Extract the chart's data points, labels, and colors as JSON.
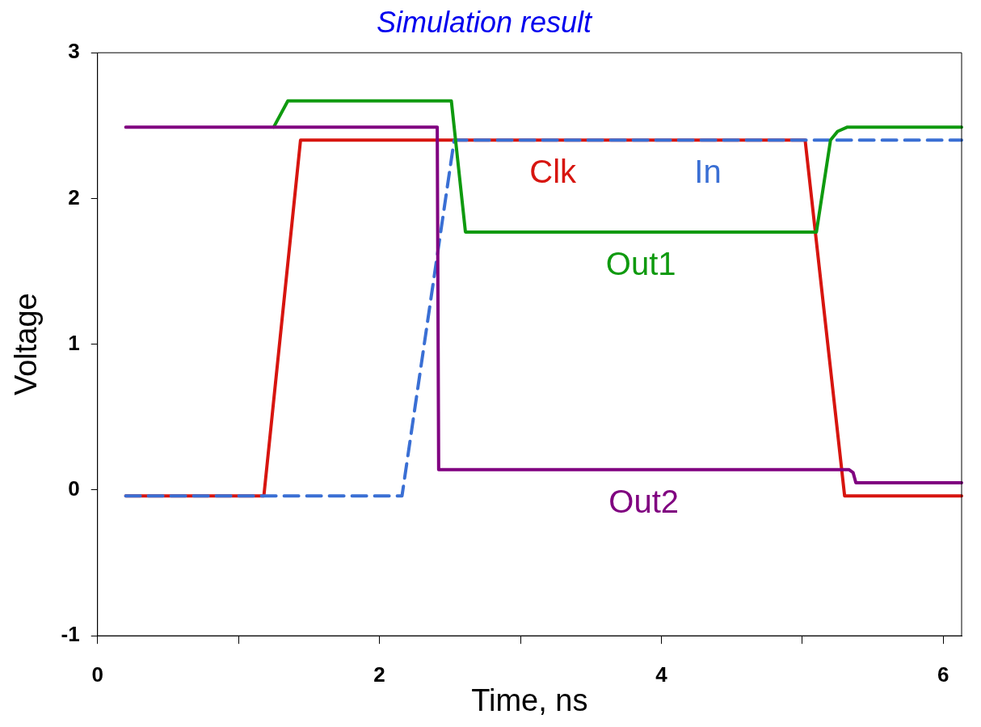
{
  "chart_data": {
    "type": "line",
    "title": "Simulation result",
    "xlabel": "Time, ns",
    "ylabel": "Voltage",
    "xlim": [
      0,
      6.13
    ],
    "ylim": [
      -1,
      3
    ],
    "xticks": [
      0,
      {
        "value": 1,
        "label": null
      },
      2,
      {
        "value": 3,
        "label": null
      },
      4,
      {
        "value": 5,
        "label": null
      },
      6
    ],
    "yticks": [
      -1,
      0,
      1,
      2,
      3
    ],
    "grid": false,
    "legend": false,
    "marker": "none",
    "series": [
      {
        "name": "Clk",
        "color": "#d7150f",
        "line_style": "solid",
        "x": [
          0.2,
          1.18,
          1.44,
          5.02,
          5.3,
          6.13
        ],
        "values": [
          -0.04,
          -0.04,
          2.4,
          2.4,
          -0.04,
          -0.04
        ]
      },
      {
        "name": "In",
        "color": "#3a6fd4",
        "line_style": "dashed",
        "x": [
          0.2,
          2.16,
          2.53,
          6.13
        ],
        "values": [
          -0.04,
          -0.04,
          2.4,
          2.4
        ]
      },
      {
        "name": "Out1",
        "color": "#0f9a0f",
        "line_style": "solid",
        "x": [
          1.25,
          1.35,
          2.51,
          2.61,
          5.1,
          5.2,
          5.25,
          5.32,
          6.13
        ],
        "values": [
          2.49,
          2.67,
          2.67,
          1.77,
          1.77,
          2.4,
          2.46,
          2.49,
          2.49
        ]
      },
      {
        "name": "Out2",
        "color": "#800080",
        "line_style": "solid",
        "x": [
          0.2,
          2.41,
          2.42,
          5.33,
          5.36,
          5.38,
          6.13
        ],
        "values": [
          2.49,
          2.49,
          0.14,
          0.14,
          0.12,
          0.05,
          0.05
        ]
      }
    ]
  }
}
